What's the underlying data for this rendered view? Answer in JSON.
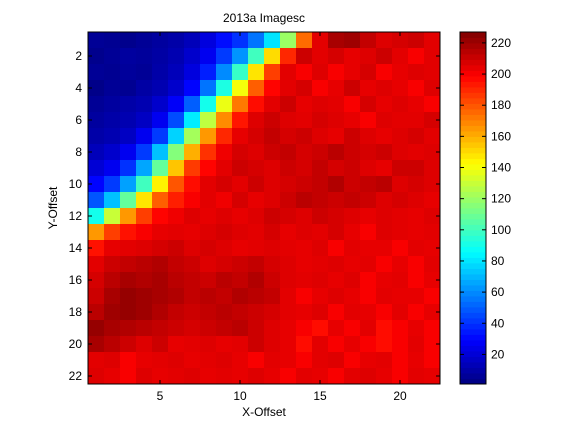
{
  "chart_data": {
    "type": "heatmap",
    "title": "2013a Imagesc",
    "xlabel": "X-Offset",
    "ylabel": "Y-Offset",
    "x_ticks": [
      5,
      10,
      15,
      20
    ],
    "y_ticks": [
      2,
      4,
      6,
      8,
      10,
      12,
      14,
      16,
      18,
      20,
      22
    ],
    "xlim": [
      0.5,
      22.5
    ],
    "ylim": [
      0.5,
      22.5
    ],
    "y_direction": "reverse",
    "colormap": "jet",
    "clim": [
      1,
      227
    ],
    "colorbar_ticks": [
      20,
      40,
      60,
      80,
      100,
      120,
      140,
      160,
      180,
      200,
      220
    ],
    "colorbar_location": "right",
    "rows": [
      [
        6,
        5,
        4,
        6,
        8,
        10,
        14,
        22,
        32,
        40,
        55,
        80,
        120,
        175,
        205,
        218,
        220,
        212,
        206,
        208,
        210,
        205
      ],
      [
        4,
        6,
        8,
        7,
        9,
        12,
        18,
        26,
        42,
        62,
        100,
        150,
        190,
        210,
        205,
        208,
        204,
        206,
        210,
        205,
        200,
        205
      ],
      [
        6,
        5,
        7,
        6,
        10,
        14,
        22,
        36,
        60,
        98,
        148,
        185,
        205,
        200,
        206,
        200,
        204,
        208,
        200,
        204,
        206,
        205
      ],
      [
        3,
        6,
        5,
        9,
        12,
        18,
        30,
        55,
        92,
        140,
        178,
        198,
        205,
        208,
        200,
        204,
        210,
        204,
        206,
        204,
        200,
        206
      ],
      [
        6,
        8,
        10,
        12,
        18,
        28,
        50,
        90,
        138,
        172,
        196,
        205,
        210,
        204,
        206,
        205,
        200,
        208,
        204,
        206,
        204,
        200
      ],
      [
        8,
        10,
        12,
        16,
        26,
        46,
        82,
        128,
        168,
        194,
        206,
        210,
        206,
        205,
        208,
        206,
        204,
        200,
        206,
        205,
        205,
        208
      ],
      [
        10,
        12,
        16,
        26,
        42,
        76,
        122,
        165,
        190,
        204,
        208,
        212,
        208,
        210,
        206,
        204,
        210,
        206,
        204,
        206,
        208,
        205
      ],
      [
        14,
        18,
        26,
        42,
        72,
        115,
        160,
        188,
        202,
        208,
        206,
        210,
        212,
        208,
        210,
        214,
        210,
        208,
        210,
        206,
        205,
        206
      ],
      [
        20,
        26,
        40,
        66,
        108,
        155,
        186,
        198,
        205,
        210,
        208,
        206,
        210,
        208,
        212,
        208,
        210,
        206,
        204,
        210,
        210,
        206
      ],
      [
        30,
        42,
        65,
        100,
        145,
        180,
        196,
        205,
        208,
        205,
        210,
        206,
        208,
        210,
        212,
        216,
        210,
        212,
        214,
        206,
        208,
        206
      ],
      [
        48,
        72,
        108,
        148,
        178,
        192,
        200,
        205,
        202,
        208,
        204,
        206,
        210,
        214,
        212,
        210,
        212,
        210,
        206,
        208,
        206,
        204
      ],
      [
        90,
        130,
        165,
        185,
        198,
        202,
        206,
        204,
        206,
        204,
        206,
        210,
        208,
        206,
        210,
        208,
        206,
        204,
        206,
        205,
        204,
        206
      ],
      [
        165,
        185,
        195,
        200,
        204,
        205,
        204,
        206,
        208,
        206,
        205,
        208,
        204,
        206,
        205,
        208,
        204,
        200,
        206,
        205,
        204,
        205
      ],
      [
        195,
        204,
        205,
        206,
        208,
        210,
        206,
        208,
        206,
        204,
        205,
        206,
        205,
        204,
        206,
        200,
        205,
        204,
        204,
        200,
        205,
        204
      ],
      [
        205,
        210,
        212,
        214,
        216,
        212,
        210,
        206,
        208,
        210,
        212,
        208,
        206,
        204,
        205,
        206,
        204,
        205,
        200,
        204,
        200,
        205
      ],
      [
        208,
        214,
        218,
        216,
        218,
        214,
        212,
        210,
        214,
        212,
        216,
        210,
        206,
        205,
        206,
        204,
        206,
        200,
        204,
        205,
        200,
        204
      ],
      [
        210,
        218,
        222,
        220,
        218,
        216,
        212,
        214,
        212,
        216,
        214,
        212,
        205,
        200,
        204,
        206,
        204,
        200,
        205,
        204,
        204,
        200
      ],
      [
        214,
        220,
        222,
        220,
        216,
        212,
        210,
        212,
        214,
        212,
        210,
        208,
        205,
        204,
        206,
        200,
        205,
        204,
        200,
        205,
        200,
        204
      ],
      [
        222,
        218,
        216,
        214,
        212,
        210,
        208,
        210,
        212,
        214,
        210,
        206,
        204,
        200,
        196,
        204,
        200,
        205,
        196,
        200,
        204,
        200
      ],
      [
        218,
        214,
        210,
        206,
        210,
        204,
        205,
        206,
        204,
        205,
        210,
        206,
        204,
        196,
        205,
        200,
        204,
        200,
        196,
        200,
        205,
        200
      ],
      [
        205,
        206,
        200,
        204,
        205,
        206,
        204,
        205,
        206,
        204,
        200,
        205,
        204,
        200,
        205,
        206,
        200,
        204,
        205,
        200,
        204,
        200
      ],
      [
        206,
        204,
        200,
        206,
        204,
        205,
        206,
        204,
        205,
        204,
        206,
        204,
        200,
        205,
        204,
        200,
        205,
        206,
        204,
        200,
        205,
        204
      ]
    ]
  }
}
